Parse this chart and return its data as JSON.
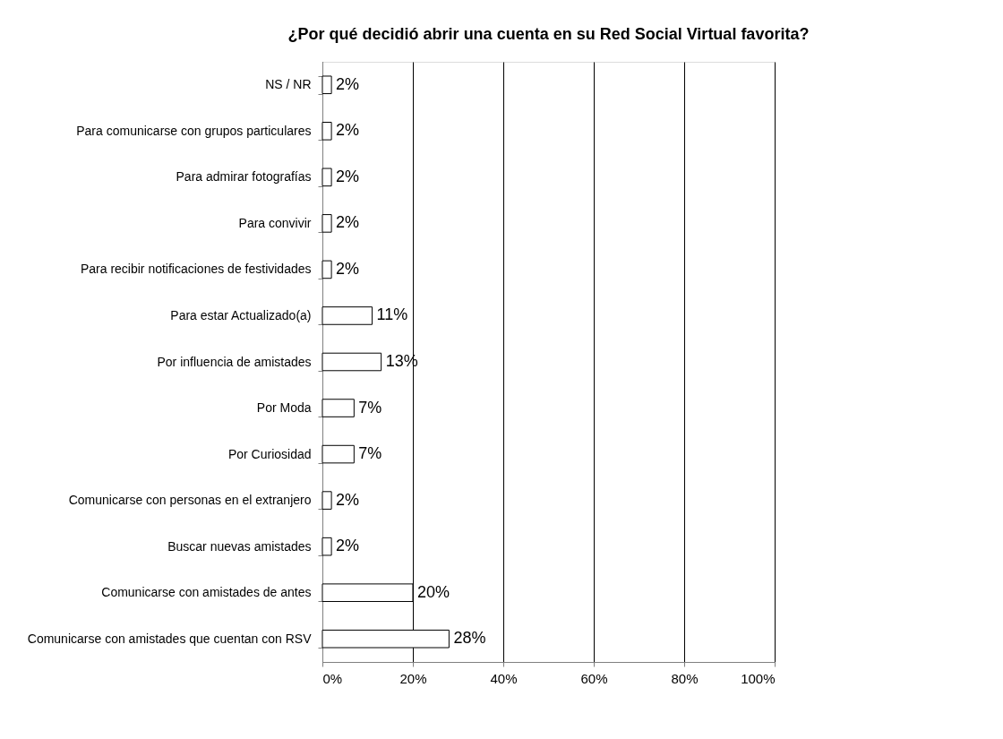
{
  "chart_data": {
    "type": "bar",
    "orientation": "horizontal",
    "title": "¿Por qué decidió abrir una cuenta en su Red Social Virtual favorita?",
    "categories": [
      "NS / NR",
      "Para comunicarse con grupos particulares",
      "Para admirar fotografías",
      "Para convivir",
      "Para recibir notificaciones de festividades",
      "Para estar Actualizado(a)",
      "Por influencia de amistades",
      "Por Moda",
      "Por Curiosidad",
      "Comunicarse con personas en el extranjero",
      "Buscar nuevas amistades",
      "Comunicarse con amistades de antes",
      "Comunicarse con amistades que cuentan con RSV"
    ],
    "values": [
      2,
      2,
      2,
      2,
      2,
      11,
      13,
      7,
      7,
      2,
      2,
      20,
      28
    ],
    "value_labels": [
      "2%",
      "2%",
      "2%",
      "2%",
      "2%",
      "11%",
      "13%",
      "7%",
      "7%",
      "2%",
      "2%",
      "20%",
      "28%"
    ],
    "color": "#ffffff",
    "xlim": [
      0,
      100
    ],
    "xticks": [
      {
        "value": 0,
        "label": "0%"
      },
      {
        "value": 20,
        "label": "20%"
      },
      {
        "value": 40,
        "label": "40%"
      },
      {
        "value": 60,
        "label": "60%"
      },
      {
        "value": 80,
        "label": "80%"
      },
      {
        "value": 100,
        "label": "100%"
      }
    ],
    "grid": "x"
  }
}
